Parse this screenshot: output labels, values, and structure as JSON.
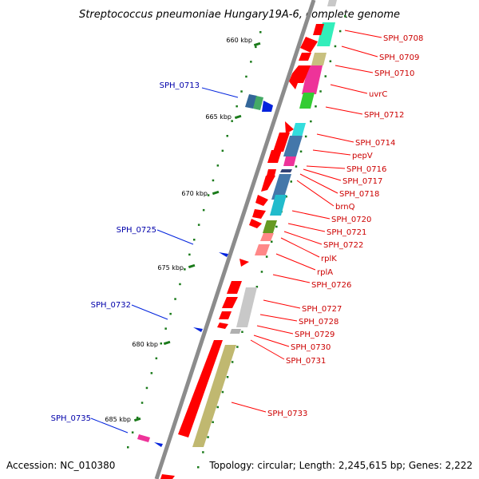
{
  "title": "Streptococcus pneumoniae Hungary19A-6, complete genome",
  "footer": {
    "accession": "Accession: NC_010380",
    "topology": "Topology: circular; Length: 2,245,615 bp; Genes: 2,222"
  },
  "colors": {
    "backbone": "#8c8c8c",
    "gene_red": "#ff0000",
    "label_red": "#cc0000",
    "label_blue": "#0000aa",
    "tick_green": "#1a7a1a"
  },
  "scale_labels": [
    "660 kbp",
    "665 kbp",
    "670 kbp",
    "675 kbp",
    "680 kbp",
    "685 kbp"
  ],
  "gene_labels_right": [
    "SPH_0708",
    "SPH_0709",
    "SPH_0710",
    "uvrC",
    "SPH_0712",
    "SPH_0714",
    "pepV",
    "SPH_0716",
    "SPH_0717",
    "SPH_0718",
    "brnQ",
    "SPH_0720",
    "SPH_0721",
    "SPH_0722",
    "rplK",
    "rplA",
    "SPH_0726",
    "SPH_0727",
    "SPH_0728",
    "SPH_0729",
    "SPH_0730",
    "SPH_0731",
    "SPH_0733"
  ],
  "gene_labels_left": [
    "SPH_0713",
    "SPH_0725",
    "SPH_0732",
    "SPH_0735"
  ]
}
